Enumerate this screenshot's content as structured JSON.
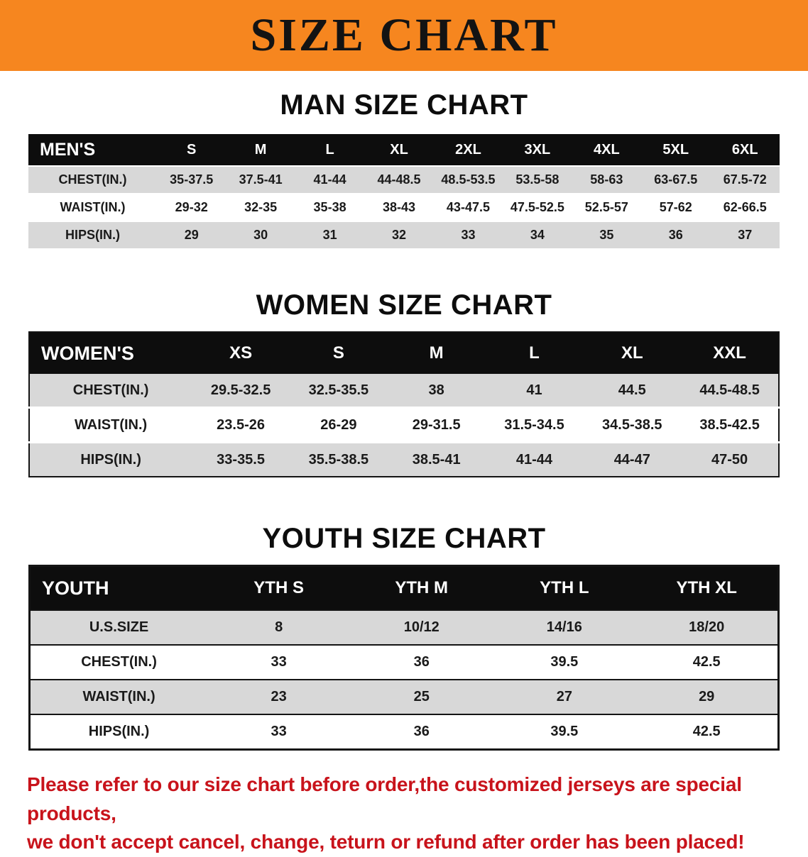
{
  "banner": {
    "title": "SIZE CHART",
    "bg_color": "#f6861f",
    "text_color": "#131313"
  },
  "colors": {
    "table_header_bg": "#0d0d0d",
    "table_header_text": "#ffffff",
    "row_alt_bg": "#d8d8d8",
    "disclaimer_text": "#c8131b"
  },
  "sections": [
    {
      "heading": "MAN SIZE CHART",
      "table": {
        "header": [
          "MEN'S",
          "S",
          "M",
          "L",
          "XL",
          "2XL",
          "3XL",
          "4XL",
          "5XL",
          "6XL"
        ],
        "rows": [
          {
            "label": "CHEST(IN.)",
            "values": [
              "35-37.5",
              "37.5-41",
              "41-44",
              "44-48.5",
              "48.5-53.5",
              "53.5-58",
              "58-63",
              "63-67.5",
              "67.5-72"
            ]
          },
          {
            "label": "WAIST(IN.)",
            "values": [
              "29-32",
              "32-35",
              "35-38",
              "38-43",
              "43-47.5",
              "47.5-52.5",
              "52.5-57",
              "57-62",
              "62-66.5"
            ]
          },
          {
            "label": "HIPS(IN.)",
            "values": [
              "29",
              "30",
              "31",
              "32",
              "33",
              "34",
              "35",
              "36",
              "37"
            ]
          }
        ]
      }
    },
    {
      "heading": "WOMEN SIZE CHART",
      "table": {
        "header": [
          "WOMEN'S",
          "XS",
          "S",
          "M",
          "L",
          "XL",
          "XXL"
        ],
        "rows": [
          {
            "label": "CHEST(IN.)",
            "values": [
              "29.5-32.5",
              "32.5-35.5",
              "38",
              "41",
              "44.5",
              "44.5-48.5"
            ]
          },
          {
            "label": "WAIST(IN.)",
            "values": [
              "23.5-26",
              "26-29",
              "29-31.5",
              "31.5-34.5",
              "34.5-38.5",
              "38.5-42.5"
            ]
          },
          {
            "label": "HIPS(IN.)",
            "values": [
              "33-35.5",
              "35.5-38.5",
              "38.5-41",
              "41-44",
              "44-47",
              "47-50"
            ]
          }
        ]
      }
    },
    {
      "heading": "YOUTH SIZE CHART",
      "table": {
        "header": [
          "YOUTH",
          "YTH S",
          "YTH M",
          "YTH L",
          "YTH XL"
        ],
        "rows": [
          {
            "label": "U.S.SIZE",
            "values": [
              "8",
              "10/12",
              "14/16",
              "18/20"
            ]
          },
          {
            "label": "CHEST(IN.)",
            "values": [
              "33",
              "36",
              "39.5",
              "42.5"
            ]
          },
          {
            "label": "WAIST(IN.)",
            "values": [
              "23",
              "25",
              "27",
              "29"
            ]
          },
          {
            "label": "HIPS(IN.)",
            "values": [
              "33",
              "36",
              "39.5",
              "42.5"
            ]
          }
        ]
      }
    }
  ],
  "disclaimer": {
    "line1": "Please refer to our size chart before order,the customized jerseys are special products,",
    "line2": "we don't accept cancel, change, teturn or refund after order has been placed!"
  }
}
